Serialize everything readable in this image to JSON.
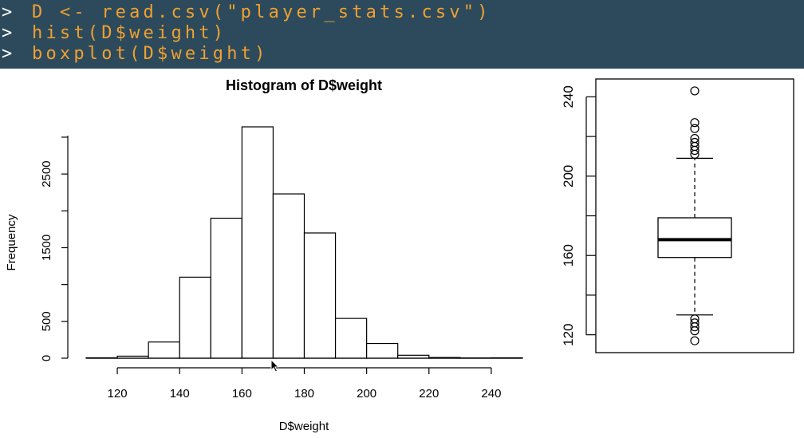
{
  "console": {
    "prompt": ">",
    "lines": [
      "D <- read.csv(\"player_stats.csv\")",
      "hist(D$weight)",
      "boxplot(D$weight)"
    ]
  },
  "chart_data": [
    {
      "type": "bar",
      "subtype": "histogram",
      "title": "Histogram of D$weight",
      "xlabel": "D$weight",
      "ylabel": "Frequency",
      "bin_edges": [
        110,
        120,
        130,
        140,
        150,
        160,
        170,
        180,
        190,
        200,
        210,
        220,
        230,
        240,
        250
      ],
      "values": [
        6,
        28,
        220,
        1100,
        1900,
        3140,
        2230,
        1700,
        540,
        200,
        40,
        10,
        4,
        6
      ],
      "xlim": [
        110,
        250
      ],
      "ylim": [
        0,
        3140
      ],
      "xticks": [
        120,
        140,
        160,
        180,
        200,
        220,
        240
      ],
      "yticks": [
        0,
        500,
        1500,
        2500
      ],
      "grid": false
    },
    {
      "type": "boxplot",
      "ylim": [
        111,
        249
      ],
      "yticks": [
        120,
        160,
        200,
        240
      ],
      "box": {
        "whisker_low": 130,
        "q1": 159,
        "median": 168,
        "q3": 179,
        "whisker_high": 209
      },
      "outliers": [
        243,
        227,
        224,
        219,
        217,
        215,
        213,
        211,
        128,
        126,
        124,
        122,
        117
      ],
      "grid": false
    }
  ]
}
